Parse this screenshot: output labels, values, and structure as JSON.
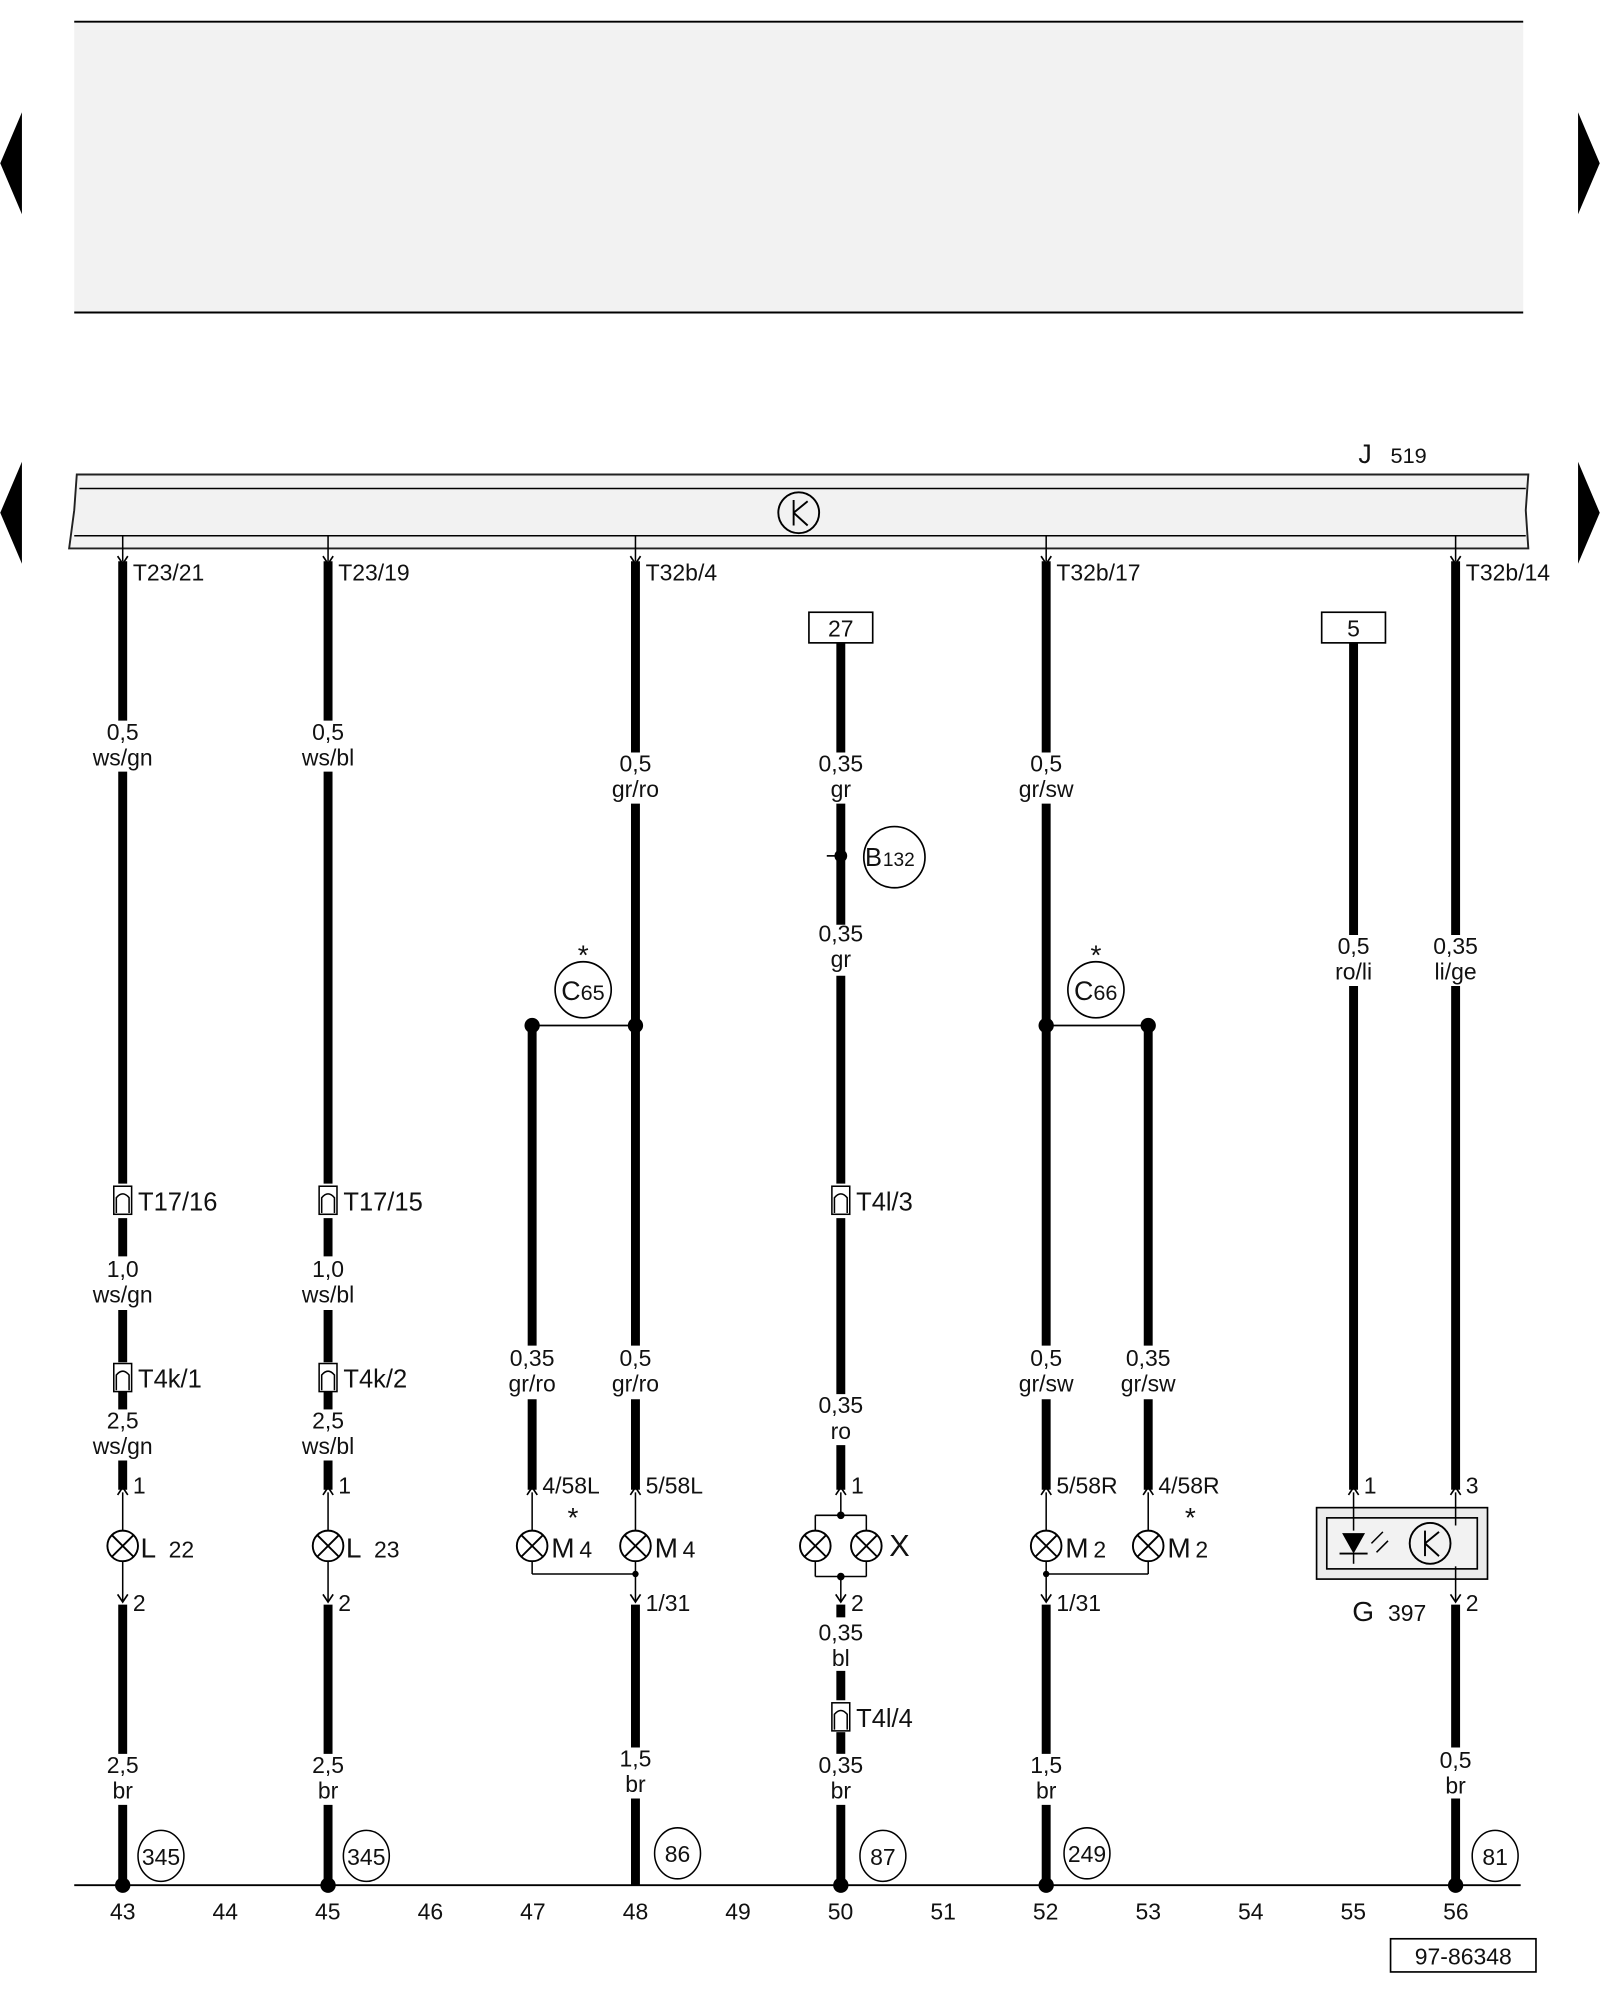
{
  "module": {
    "letter": "J",
    "number": "519"
  },
  "colors": {
    "wire": "#000000",
    "panel": "#f2f2f2",
    "line": "#222222"
  },
  "icons": [
    "nav-arrow-left-icon",
    "nav-arrow-right-icon",
    "control-unit-symbol-icon",
    "bulb-icon",
    "connector-icon",
    "led-photodiode-icon"
  ],
  "pins_top": [
    "T23/21",
    "T23/19",
    "T32b/4",
    "T32b/17",
    "T32b/14"
  ],
  "fuse_boxes": [
    "27",
    "5"
  ],
  "wire_labels": [
    [
      "0,5",
      "ws/gn"
    ],
    [
      "0,5",
      "ws/bl"
    ],
    [
      "0,5",
      "gr/ro"
    ],
    [
      "0,35",
      "gr"
    ],
    [
      "0,35",
      "gr"
    ],
    [
      "0,5",
      "gr/sw"
    ],
    [
      "0,5",
      "ro/li"
    ],
    [
      "0,35",
      "li/ge"
    ],
    [
      "1,0",
      "ws/gn"
    ],
    [
      "1,0",
      "ws/bl"
    ],
    [
      "2,5",
      "ws/gn"
    ],
    [
      "2,5",
      "ws/bl"
    ],
    [
      "0,35",
      "gr/ro"
    ],
    [
      "0,5",
      "gr/ro"
    ],
    [
      "0,35",
      "ro"
    ],
    [
      "0,5",
      "gr/sw"
    ],
    [
      "0,35",
      "gr/sw"
    ],
    [
      "0,35",
      "bl"
    ],
    [
      "2,5",
      "br"
    ],
    [
      "2,5",
      "br"
    ],
    [
      "1,5",
      "br"
    ],
    [
      "0,35",
      "br"
    ],
    [
      "1,5",
      "br"
    ],
    [
      "0,5",
      "br"
    ]
  ],
  "connection_points": [
    {
      "letter": "B",
      "number": "132"
    },
    {
      "letter": "C",
      "number": "65",
      "note": "*"
    },
    {
      "letter": "C",
      "number": "66",
      "note": "*"
    }
  ],
  "connectors": [
    "T17/16",
    "T17/15",
    "T4l/3",
    "T4k/1",
    "T4k/2",
    "T4l/4"
  ],
  "pins_in": [
    "1",
    "1",
    "4/58L",
    "5/58L",
    "1",
    "5/58R",
    "4/58R",
    "1",
    "3"
  ],
  "pins_out": [
    "2",
    "2",
    "1/31",
    "2",
    "1/31",
    "2"
  ],
  "components": [
    {
      "letter": "L",
      "number": "22"
    },
    {
      "letter": "L",
      "number": "23"
    },
    {
      "letter": "M",
      "number": "4",
      "note": "*"
    },
    {
      "letter": "M",
      "number": "4"
    },
    {
      "letter": "X",
      "number": ""
    },
    {
      "letter": "M",
      "number": "2"
    },
    {
      "letter": "M",
      "number": "2",
      "note": "*"
    },
    {
      "letter": "G",
      "number": "397"
    }
  ],
  "ground_refs": [
    "345",
    "345",
    "86",
    "87",
    "249",
    "81"
  ],
  "columns": [
    "43",
    "44",
    "45",
    "46",
    "47",
    "48",
    "49",
    "50",
    "51",
    "52",
    "53",
    "54",
    "55",
    "56"
  ],
  "diagram_number": "97-86348"
}
